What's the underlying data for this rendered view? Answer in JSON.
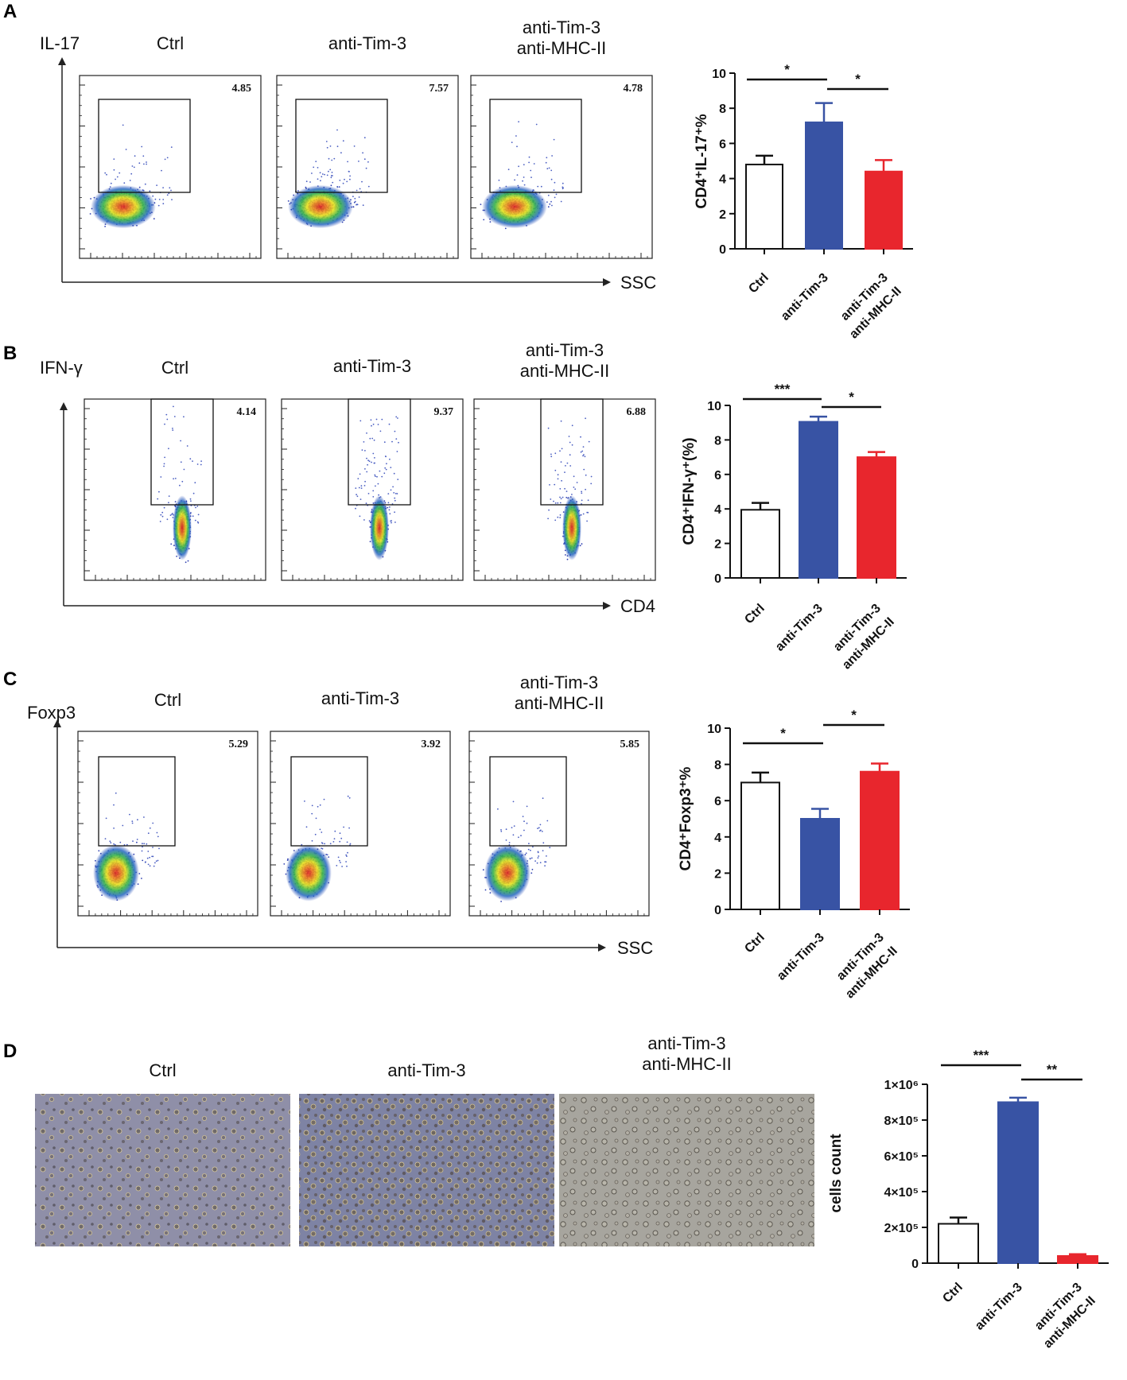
{
  "panels": [
    {
      "id": "A",
      "label": "A",
      "flow": {
        "y_axis_label": "IL-17",
        "x_axis_label": "SSC",
        "plots": [
          {
            "title": [
              "Ctrl"
            ],
            "percent": "4.85"
          },
          {
            "title": [
              "anti-Tim-3"
            ],
            "percent": "7.57"
          },
          {
            "title": [
              "anti-Tim-3",
              "anti-MHC-II"
            ],
            "percent": "4.78"
          }
        ]
      }
    },
    {
      "id": "B",
      "label": "B",
      "flow": {
        "y_axis_label": "IFN-γ",
        "x_axis_label": "CD4",
        "plots": [
          {
            "title": [
              "Ctrl"
            ],
            "percent": "4.14"
          },
          {
            "title": [
              "anti-Tim-3"
            ],
            "percent": "9.37"
          },
          {
            "title": [
              "anti-Tim-3",
              "anti-MHC-II"
            ],
            "percent": "6.88"
          }
        ]
      }
    },
    {
      "id": "C",
      "label": "C",
      "flow": {
        "y_axis_label": "Foxp3",
        "x_axis_label": "SSC",
        "plots": [
          {
            "title": [
              "Ctrl"
            ],
            "percent": "5.29"
          },
          {
            "title": [
              "anti-Tim-3"
            ],
            "percent": "3.92"
          },
          {
            "title": [
              "anti-Tim-3",
              "anti-MHC-II"
            ],
            "percent": "5.85"
          }
        ]
      }
    },
    {
      "id": "D",
      "label": "D",
      "images": {
        "titles": [
          [
            "Ctrl"
          ],
          [
            "anti-Tim-3"
          ],
          [
            "anti-Tim-3",
            "anti-MHC-II"
          ]
        ]
      }
    }
  ],
  "colors": {
    "ctrl": "#ffffff",
    "anti_tim3": "#3853a4",
    "anti_tim3_mhc": "#e8262d",
    "bar_edge": "#111111"
  },
  "chart_data": [
    {
      "panel": "A",
      "type": "bar",
      "categories": [
        "Ctrl",
        "anti-Tim-3",
        "anti-Tim-3 anti-MHC-II"
      ],
      "category_lines": [
        [
          "Ctrl"
        ],
        [
          "anti-Tim-3"
        ],
        [
          "anti-Tim-3",
          "anti-MHC-II"
        ]
      ],
      "values": [
        4.8,
        7.2,
        4.4
      ],
      "errors": [
        0.5,
        1.1,
        0.65
      ],
      "ylabel": "CD4⁺IL-17⁺%",
      "ylim": [
        0,
        10
      ],
      "yticks": [
        0,
        2,
        4,
        6,
        8,
        10
      ],
      "ytick_labels": [
        "0",
        "2",
        "4",
        "6",
        "8",
        "10"
      ],
      "significance": [
        {
          "from": 0,
          "to": 1,
          "label": "*"
        },
        {
          "from": 1,
          "to": 2,
          "label": "*"
        }
      ]
    },
    {
      "panel": "B",
      "type": "bar",
      "categories": [
        "Ctrl",
        "anti-Tim-3",
        "anti-Tim-3 anti-MHC-II"
      ],
      "category_lines": [
        [
          "Ctrl"
        ],
        [
          "anti-Tim-3"
        ],
        [
          "anti-Tim-3",
          "anti-MHC-II"
        ]
      ],
      "values": [
        3.95,
        9.05,
        7.0
      ],
      "errors": [
        0.4,
        0.3,
        0.3
      ],
      "ylabel": "CD4⁺IFN-γ⁺(%)",
      "ylim": [
        0,
        10
      ],
      "yticks": [
        0,
        2,
        4,
        6,
        8,
        10
      ],
      "ytick_labels": [
        "0",
        "2",
        "4",
        "6",
        "8",
        "10"
      ],
      "significance": [
        {
          "from": 0,
          "to": 1,
          "label": "***"
        },
        {
          "from": 1,
          "to": 2,
          "label": "*"
        }
      ]
    },
    {
      "panel": "C",
      "type": "bar",
      "categories": [
        "Ctrl",
        "anti-Tim-3",
        "anti-Tim-3 anti-MHC-II"
      ],
      "category_lines": [
        [
          "Ctrl"
        ],
        [
          "anti-Tim-3"
        ],
        [
          "anti-Tim-3",
          "anti-MHC-II"
        ]
      ],
      "values": [
        7.0,
        5.0,
        7.6
      ],
      "errors": [
        0.55,
        0.55,
        0.45
      ],
      "ylabel": "CD4⁺Foxp3⁺%",
      "ylim": [
        0,
        10
      ],
      "yticks": [
        0,
        2,
        4,
        6,
        8,
        10
      ],
      "ytick_labels": [
        "0",
        "2",
        "4",
        "6",
        "8",
        "10"
      ],
      "significance": [
        {
          "from": 0,
          "to": 1,
          "label": "*"
        },
        {
          "from": 1,
          "to": 2,
          "label": "*"
        }
      ]
    },
    {
      "panel": "D",
      "type": "bar",
      "categories": [
        "Ctrl",
        "anti-Tim-3",
        "anti-Tim-3 anti-MHC-II"
      ],
      "category_lines": [
        [
          "Ctrl"
        ],
        [
          "anti-Tim-3"
        ],
        [
          "anti-Tim-3",
          "anti-MHC-II"
        ]
      ],
      "values": [
        220000,
        900000,
        40000
      ],
      "errors": [
        35000,
        25000,
        10000
      ],
      "ylabel": "cells count",
      "ylim": [
        0,
        1000000
      ],
      "yticks": [
        0,
        200000,
        400000,
        600000,
        800000,
        1000000
      ],
      "ytick_labels": [
        "0",
        "2×10⁵",
        "4×10⁵",
        "6×10⁵",
        "8×10⁵",
        "1×10⁶"
      ],
      "significance": [
        {
          "from": 0,
          "to": 1,
          "label": "***"
        },
        {
          "from": 1,
          "to": 2,
          "label": "**"
        }
      ]
    }
  ]
}
